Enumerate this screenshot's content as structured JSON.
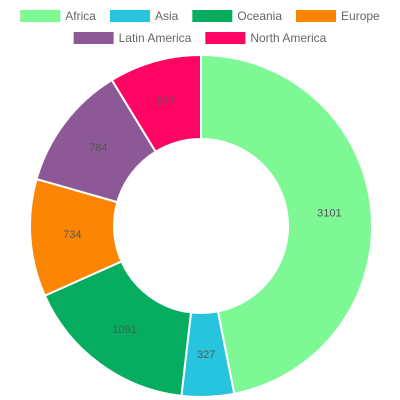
{
  "chart_data": {
    "type": "pie",
    "variant": "doughnut",
    "categories": [
      "Africa",
      "Asia",
      "Oceania",
      "Europe",
      "Latin America",
      "North America"
    ],
    "values": [
      3101,
      327,
      1091,
      734,
      784,
      577
    ],
    "colors": [
      "#7ef894",
      "#27c4dd",
      "#06ad60",
      "#fd8504",
      "#8c5896",
      "#fe0564"
    ],
    "legend_position": "top",
    "data_labels": [
      "3101",
      "327",
      "1091",
      "734",
      "784",
      "577"
    ],
    "title": "",
    "xlabel": "",
    "ylabel": ""
  }
}
